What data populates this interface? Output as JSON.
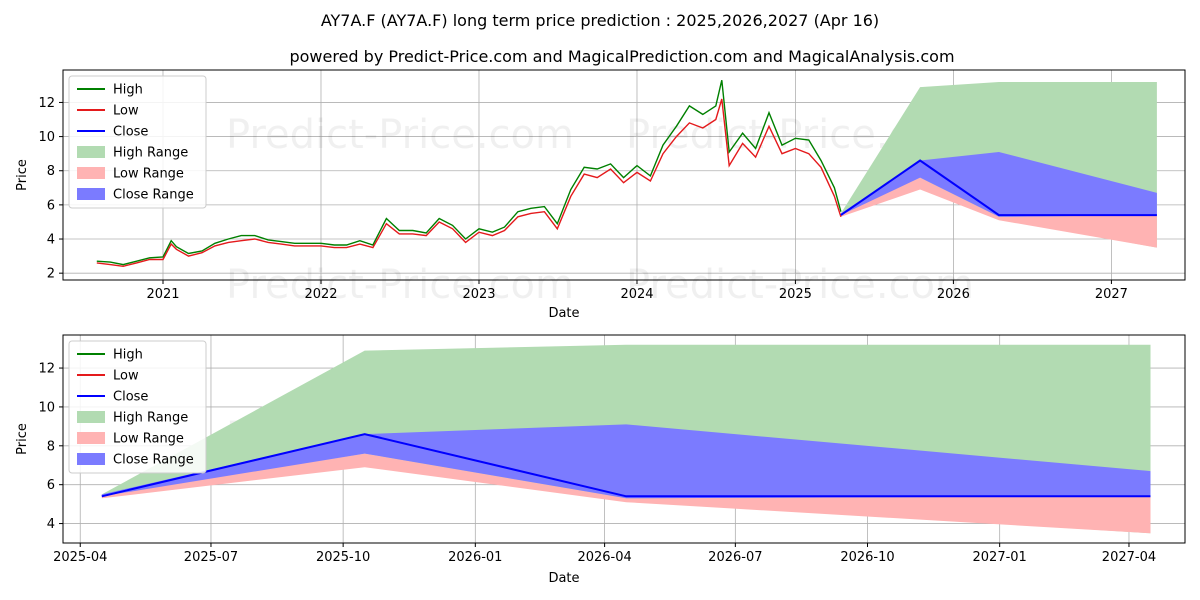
{
  "title": "AY7A.F (AY7A.F) long term price prediction : 2025,2026,2027 (Apr 16)",
  "subtitle": "powered by Predict-Price.com and MagicalPrediction.com and MagicalAnalysis.com",
  "watermark": "Predict-Price.com",
  "colors": {
    "high": "#008000",
    "low": "#e41a1c",
    "close": "#0000ff",
    "high_range": "#b2dbb2",
    "low_range": "#ffb3b3",
    "close_range": "#7b7bff",
    "grid": "#b0b0b0"
  },
  "chart_data": [
    {
      "type": "line",
      "xlabel": "Date",
      "ylabel": "Price",
      "xlim": [
        "2020-05-15",
        "2027-06-20"
      ],
      "ylim": [
        1.6,
        13.9
      ],
      "x_ticks": [
        {
          "x": "2021-01-01",
          "label": "2021"
        },
        {
          "x": "2022-01-01",
          "label": "2022"
        },
        {
          "x": "2023-01-01",
          "label": "2023"
        },
        {
          "x": "2024-01-01",
          "label": "2024"
        },
        {
          "x": "2025-01-01",
          "label": "2025"
        },
        {
          "x": "2026-01-01",
          "label": "2026"
        },
        {
          "x": "2027-01-01",
          "label": "2027"
        }
      ],
      "y_ticks": [
        2,
        4,
        6,
        8,
        10,
        12
      ],
      "grid": true,
      "legend": {
        "placement": "top-left",
        "entries": [
          "High",
          "Low",
          "Close",
          "High Range",
          "Low Range",
          "Close Range"
        ]
      },
      "history": {
        "x": [
          "2020-08-01",
          "2020-09-01",
          "2020-10-01",
          "2020-11-01",
          "2020-12-01",
          "2021-01-01",
          "2021-01-20",
          "2021-02-01",
          "2021-03-01",
          "2021-04-01",
          "2021-05-01",
          "2021-06-01",
          "2021-07-01",
          "2021-08-01",
          "2021-09-01",
          "2021-10-01",
          "2021-11-01",
          "2021-12-01",
          "2022-01-01",
          "2022-02-01",
          "2022-03-01",
          "2022-04-01",
          "2022-05-01",
          "2022-06-01",
          "2022-07-01",
          "2022-08-01",
          "2022-09-01",
          "2022-10-01",
          "2022-11-01",
          "2022-12-01",
          "2023-01-01",
          "2023-02-01",
          "2023-03-01",
          "2023-04-01",
          "2023-05-01",
          "2023-06-01",
          "2023-07-01",
          "2023-08-01",
          "2023-09-01",
          "2023-10-01",
          "2023-11-01",
          "2023-12-01",
          "2024-01-01",
          "2024-02-01",
          "2024-03-01",
          "2024-04-01",
          "2024-05-01",
          "2024-06-01",
          "2024-07-01",
          "2024-07-15",
          "2024-08-01",
          "2024-09-01",
          "2024-10-01",
          "2024-11-01",
          "2024-12-01",
          "2025-01-01",
          "2025-02-01",
          "2025-03-01",
          "2025-04-01",
          "2025-04-16"
        ],
        "values": [
          2.6,
          2.5,
          2.4,
          2.6,
          2.8,
          2.8,
          3.7,
          3.4,
          3.0,
          3.2,
          3.6,
          3.8,
          3.9,
          4.0,
          3.8,
          3.7,
          3.6,
          3.6,
          3.6,
          3.5,
          3.5,
          3.7,
          3.5,
          4.9,
          4.3,
          4.3,
          4.2,
          5.0,
          4.6,
          3.8,
          4.4,
          4.2,
          4.5,
          5.3,
          5.5,
          5.6,
          4.6,
          6.5,
          7.8,
          7.6,
          8.1,
          7.3,
          7.9,
          7.4,
          9.0,
          10.0,
          10.8,
          10.5,
          11.0,
          12.2,
          8.3,
          9.6,
          8.8,
          10.6,
          9.0,
          9.3,
          9.0,
          8.2,
          6.5,
          5.3
        ],
        "high_delta": [
          0.1,
          0.15,
          0.1,
          0.1,
          0.1,
          0.15,
          0.2,
          0.15,
          0.15,
          0.1,
          0.15,
          0.2,
          0.3,
          0.2,
          0.15,
          0.15,
          0.15,
          0.15,
          0.15,
          0.15,
          0.15,
          0.2,
          0.15,
          0.3,
          0.2,
          0.2,
          0.15,
          0.2,
          0.2,
          0.2,
          0.2,
          0.2,
          0.2,
          0.3,
          0.3,
          0.3,
          0.3,
          0.4,
          0.4,
          0.5,
          0.3,
          0.3,
          0.4,
          0.3,
          0.5,
          0.6,
          1.0,
          0.8,
          0.8,
          1.1,
          0.8,
          0.6,
          0.5,
          0.8,
          0.5,
          0.6,
          0.8,
          0.4,
          0.5,
          0.3
        ]
      },
      "forecast_x": [
        "2025-04-16",
        "2025-10-16",
        "2026-04-16",
        "2027-04-16"
      ],
      "high_range": {
        "upper": [
          5.5,
          12.9,
          13.2,
          13.2
        ],
        "lower": [
          5.5,
          7.6,
          5.2,
          3.5
        ]
      },
      "low_range": {
        "upper": [
          5.5,
          7.6,
          5.3,
          5.4
        ],
        "lower": [
          5.3,
          6.9,
          5.1,
          3.5
        ]
      },
      "close_range": {
        "upper": [
          5.5,
          8.6,
          9.1,
          6.7
        ],
        "lower": [
          5.4,
          7.6,
          5.3,
          5.4
        ]
      },
      "close_line": [
        5.4,
        8.6,
        5.4,
        5.4
      ]
    },
    {
      "type": "line",
      "xlabel": "Date",
      "ylabel": "Price",
      "xlim": [
        "2025-03-20",
        "2027-05-10"
      ],
      "ylim": [
        3.0,
        13.7
      ],
      "x_ticks": [
        {
          "x": "2025-04-01",
          "label": "2025-04"
        },
        {
          "x": "2025-07-01",
          "label": "2025-07"
        },
        {
          "x": "2025-10-01",
          "label": "2025-10"
        },
        {
          "x": "2026-01-01",
          "label": "2026-01"
        },
        {
          "x": "2026-04-01",
          "label": "2026-04"
        },
        {
          "x": "2026-07-01",
          "label": "2026-07"
        },
        {
          "x": "2026-10-01",
          "label": "2026-10"
        },
        {
          "x": "2027-01-01",
          "label": "2027-01"
        },
        {
          "x": "2027-04-01",
          "label": "2027-04"
        }
      ],
      "y_ticks": [
        4,
        6,
        8,
        10,
        12
      ],
      "grid": true,
      "legend": {
        "placement": "top-left",
        "entries": [
          "High",
          "Low",
          "Close",
          "High Range",
          "Low Range",
          "Close Range"
        ]
      },
      "forecast_x": [
        "2025-04-16",
        "2025-10-16",
        "2026-04-16",
        "2027-04-16"
      ],
      "high_range": {
        "upper": [
          5.5,
          12.9,
          13.2,
          13.2
        ],
        "lower": [
          5.5,
          7.6,
          5.2,
          3.5
        ]
      },
      "low_range": {
        "upper": [
          5.5,
          7.6,
          5.3,
          5.4
        ],
        "lower": [
          5.3,
          6.9,
          5.1,
          3.5
        ]
      },
      "close_range": {
        "upper": [
          5.5,
          8.6,
          9.1,
          6.7
        ],
        "lower": [
          5.4,
          7.6,
          5.3,
          5.4
        ]
      },
      "close_line": [
        5.4,
        8.6,
        5.4,
        5.4
      ]
    }
  ]
}
